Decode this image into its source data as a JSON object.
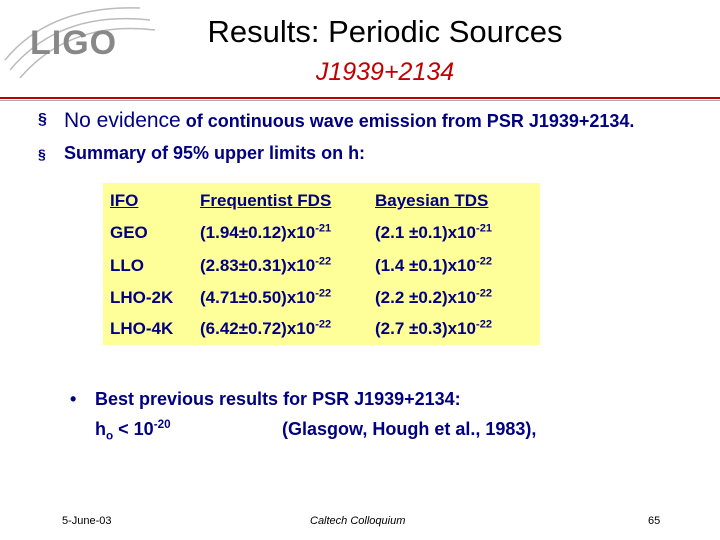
{
  "header": {
    "logo": "LIGO",
    "title": "Results: Periodic Sources",
    "subtitle": "J1939+2134"
  },
  "bullets": [
    {
      "lead": "No evidence",
      "rest": "of continuous wave emission from PSR J1939+2134."
    },
    {
      "text": "Summary of 95% upper limits on h:"
    }
  ],
  "table": {
    "header": [
      "IFO",
      "Frequentist FDS",
      "Bayesian TDS"
    ],
    "rows": [
      {
        "ifo": "GEO",
        "fds": {
          "base": "(1.94±0.12)x10",
          "exp": "-21"
        },
        "tds": {
          "base": "(2.1 ±0.1)x10",
          "exp": "-21"
        }
      },
      {
        "ifo": "LLO",
        "fds": {
          "base": "(2.83±0.31)x10",
          "exp": "-22"
        },
        "tds": {
          "base": "(1.4 ±0.1)x10",
          "exp": "-22"
        }
      },
      {
        "ifo": "LHO-2K",
        "fds": {
          "base": "(4.71±0.50)x10",
          "exp": "-22"
        },
        "tds": {
          "base": "(2.2 ±0.2)x10",
          "exp": "-22"
        }
      },
      {
        "ifo": "LHO-4K",
        "fds": {
          "base": "(6.42±0.72)x10",
          "exp": "-22"
        },
        "tds": {
          "base": "(2.7 ±0.3)x10",
          "exp": "-22"
        }
      }
    ]
  },
  "previous": {
    "text": "Best previous results for PSR J1939+2134:",
    "h": "h",
    "sub": "o",
    "lt": "< 10",
    "exp": "-20",
    "ref": "(Glasgow, Hough et al., 1983),"
  },
  "footer": {
    "date": "5-June-03",
    "venue": "Caltech Colloquium",
    "page": "65"
  }
}
